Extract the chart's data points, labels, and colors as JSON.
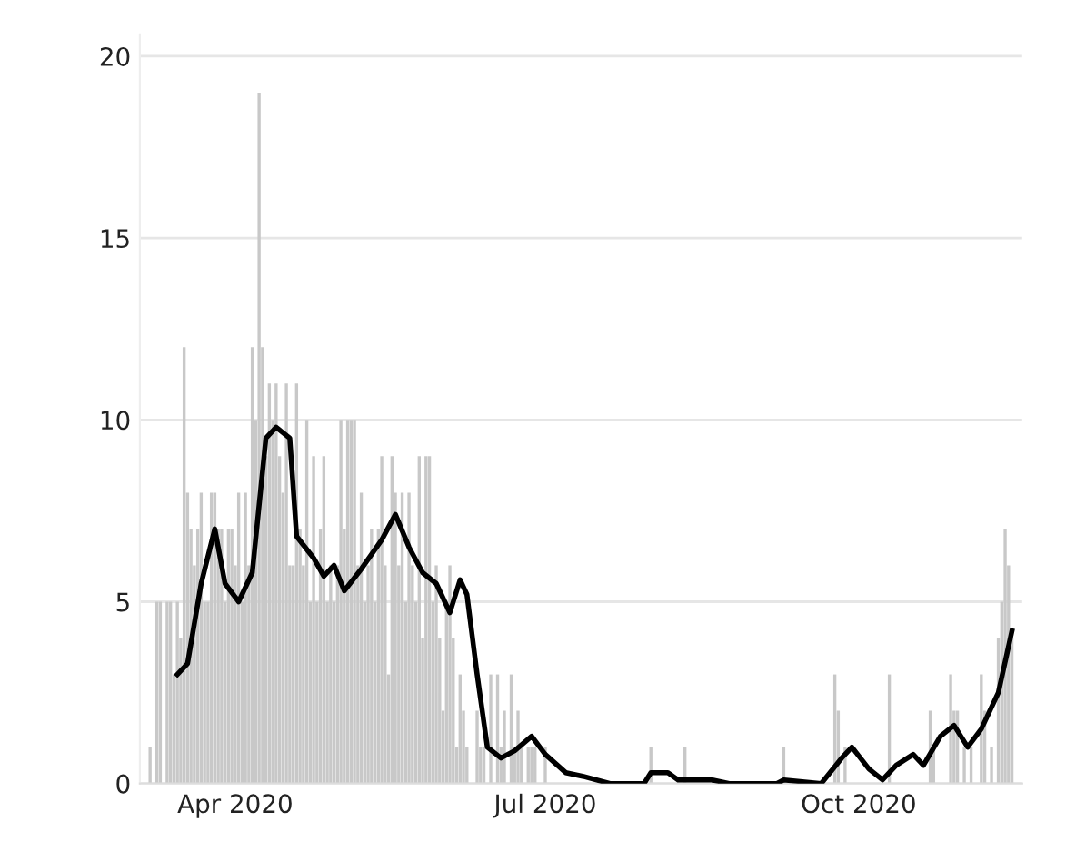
{
  "chart_data": {
    "type": "bar",
    "series": [
      {
        "color": "#c8c8c8",
        "x": [
          "2020-03-07",
          "2020-03-09",
          "2020-03-10",
          "2020-03-12",
          "2020-03-13",
          "2020-03-14",
          "2020-03-15",
          "2020-03-16",
          "2020-03-17",
          "2020-03-18",
          "2020-03-19",
          "2020-03-20",
          "2020-03-21",
          "2020-03-22",
          "2020-03-23",
          "2020-03-24",
          "2020-03-25",
          "2020-03-26",
          "2020-03-27",
          "2020-03-28",
          "2020-03-29",
          "2020-03-30",
          "2020-03-31",
          "2020-04-01",
          "2020-04-02",
          "2020-04-03",
          "2020-04-04",
          "2020-04-05",
          "2020-04-06",
          "2020-04-07",
          "2020-04-08",
          "2020-04-09",
          "2020-04-10",
          "2020-04-11",
          "2020-04-12",
          "2020-04-13",
          "2020-04-14",
          "2020-04-15",
          "2020-04-16",
          "2020-04-17",
          "2020-04-18",
          "2020-04-19",
          "2020-04-20",
          "2020-04-21",
          "2020-04-22",
          "2020-04-23",
          "2020-04-24",
          "2020-04-25",
          "2020-04-26",
          "2020-04-27",
          "2020-04-28",
          "2020-04-29",
          "2020-04-30",
          "2020-05-01",
          "2020-05-02",
          "2020-05-03",
          "2020-05-04",
          "2020-05-05",
          "2020-05-06",
          "2020-05-07",
          "2020-05-08",
          "2020-05-09",
          "2020-05-10",
          "2020-05-11",
          "2020-05-12",
          "2020-05-13",
          "2020-05-14",
          "2020-05-15",
          "2020-05-16",
          "2020-05-17",
          "2020-05-18",
          "2020-05-19",
          "2020-05-20",
          "2020-05-21",
          "2020-05-22",
          "2020-05-23",
          "2020-05-24",
          "2020-05-25",
          "2020-05-26",
          "2020-05-27",
          "2020-05-28",
          "2020-05-29",
          "2020-05-30",
          "2020-05-31",
          "2020-06-01",
          "2020-06-02",
          "2020-06-03",
          "2020-06-04",
          "2020-06-05",
          "2020-06-06",
          "2020-06-07",
          "2020-06-08",
          "2020-06-11",
          "2020-06-12",
          "2020-06-13",
          "2020-06-15",
          "2020-06-17",
          "2020-06-18",
          "2020-06-19",
          "2020-06-21",
          "2020-06-22",
          "2020-06-23",
          "2020-06-24",
          "2020-06-26",
          "2020-06-27",
          "2020-06-28",
          "2020-07-01",
          "2020-08-01",
          "2020-08-11",
          "2020-09-09",
          "2020-09-24",
          "2020-09-25",
          "2020-09-27",
          "2020-10-10",
          "2020-10-22",
          "2020-10-23",
          "2020-10-28",
          "2020-10-29",
          "2020-10-30",
          "2020-11-01",
          "2020-11-03",
          "2020-11-06",
          "2020-11-07",
          "2020-11-09",
          "2020-11-11",
          "2020-11-12",
          "2020-11-13",
          "2020-11-14",
          "2020-11-15"
        ],
        "values": [
          1,
          5,
          5,
          5,
          5,
          3,
          5,
          4,
          12,
          8,
          7,
          6,
          7,
          8,
          5,
          5,
          8,
          8,
          7,
          7,
          5,
          7,
          7,
          6,
          8,
          5,
          8,
          6,
          12,
          10,
          19,
          12,
          9,
          11,
          10,
          11,
          9,
          8,
          11,
          6,
          6,
          11,
          7,
          6,
          10,
          5,
          9,
          5,
          7,
          9,
          5,
          6,
          5,
          6,
          10,
          7,
          10,
          10,
          10,
          6,
          8,
          5,
          6,
          7,
          5,
          7,
          9,
          6,
          3,
          9,
          8,
          6,
          8,
          5,
          8,
          6,
          5,
          9,
          4,
          9,
          9,
          5,
          6,
          4,
          2,
          5,
          6,
          4,
          1,
          3,
          2,
          1,
          2,
          1,
          1,
          3,
          3,
          1,
          2,
          3,
          1,
          2,
          1,
          1,
          1,
          1,
          1,
          1,
          1,
          1,
          3,
          2,
          1,
          3,
          2,
          1,
          3,
          2,
          2,
          1,
          1,
          3,
          2,
          1,
          4,
          5,
          7,
          6,
          4
        ]
      },
      {
        "type": "line",
        "color": "#000000",
        "x": [
          "2020-03-15",
          "2020-03-18",
          "2020-03-22",
          "2020-03-26",
          "2020-03-29",
          "2020-04-02",
          "2020-04-06",
          "2020-04-10",
          "2020-04-13",
          "2020-04-17",
          "2020-04-19",
          "2020-04-24",
          "2020-04-27",
          "2020-04-30",
          "2020-05-03",
          "2020-05-08",
          "2020-05-14",
          "2020-05-18",
          "2020-05-22",
          "2020-05-26",
          "2020-05-30",
          "2020-06-03",
          "2020-06-06",
          "2020-06-08",
          "2020-06-11",
          "2020-06-14",
          "2020-06-18",
          "2020-06-22",
          "2020-06-27",
          "2020-07-01",
          "2020-07-07",
          "2020-07-12",
          "2020-07-20",
          "2020-07-30",
          "2020-08-01",
          "2020-08-06",
          "2020-08-09",
          "2020-08-19",
          "2020-08-24",
          "2020-09-07",
          "2020-09-09",
          "2020-09-20",
          "2020-09-26",
          "2020-09-29",
          "2020-10-04",
          "2020-10-08",
          "2020-10-12",
          "2020-10-17",
          "2020-10-20",
          "2020-10-25",
          "2020-10-29",
          "2020-11-02",
          "2020-11-06",
          "2020-11-11",
          "2020-11-15"
        ],
        "values": [
          3.0,
          3.3,
          5.5,
          7.0,
          5.5,
          5.0,
          5.8,
          9.5,
          9.8,
          9.5,
          6.8,
          6.2,
          5.7,
          6.0,
          5.3,
          5.9,
          6.7,
          7.4,
          6.5,
          5.8,
          5.5,
          4.7,
          5.6,
          5.2,
          3.0,
          1.0,
          0.7,
          0.9,
          1.3,
          0.8,
          0.3,
          0.2,
          0,
          0,
          0.3,
          0.3,
          0.1,
          0.1,
          0,
          0,
          0.1,
          0,
          0.7,
          1.0,
          0.4,
          0.1,
          0.5,
          0.8,
          0.5,
          1.3,
          1.6,
          1.0,
          1.5,
          2.5,
          4.2
        ]
      }
    ],
    "xlim": [
      "2020-03-04",
      "2020-11-18"
    ],
    "xticks": [
      {
        "value": "2020-04-01",
        "label": "Apr 2020"
      },
      {
        "value": "2020-07-01",
        "label": "Jul 2020"
      },
      {
        "value": "2020-10-01",
        "label": "Oct 2020"
      }
    ],
    "ylim": [
      0,
      20.6
    ],
    "yticks": [
      0,
      5,
      10,
      15,
      20
    ],
    "grid": "y",
    "legend": false
  }
}
